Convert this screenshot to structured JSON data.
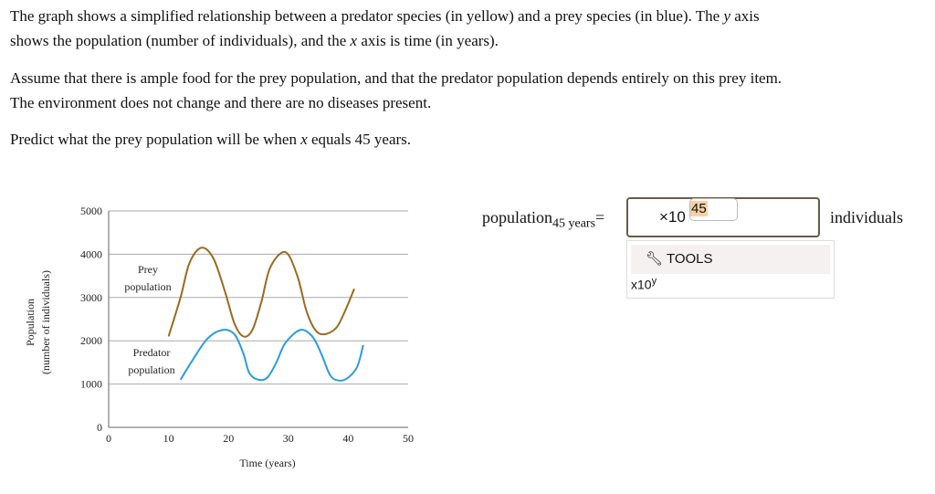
{
  "question": {
    "p1a": "The graph shows a simplified relationship between a predator species (in yellow) and a prey species (in blue). The ",
    "p1y": "y",
    "p1b": " axis",
    "p1c": "shows the population (number of individuals), and the ",
    "p1x": "x",
    "p1d": " axis is time (in years).",
    "p2a": "Assume that there is ample food for the prey population, and that the predator population depends entirely on this prey item.",
    "p2b": "The environment does not change and there are no diseases present.",
    "p3a": "Predict what the prey population will be when ",
    "p3x": "x",
    "p3b": " equals 45 years."
  },
  "answer": {
    "label": "population",
    "label_sub": "45 years",
    "equals": "=",
    "times_ten": "×10",
    "exponent": "45",
    "unit": "individuals",
    "tools_label": "TOOLS",
    "tools_icon": "wrench-icon",
    "sci_button": "x10",
    "sci_button_sup": "y"
  },
  "chart_data": {
    "type": "line",
    "xlabel": "Time (years)",
    "ylabel": "Population",
    "ylabel2": "(number of individuals)",
    "xlim": [
      0,
      50
    ],
    "ylim": [
      0,
      5000
    ],
    "xticks": [
      0,
      10,
      20,
      30,
      40,
      50
    ],
    "yticks": [
      0,
      1000,
      2000,
      3000,
      4000,
      5000
    ],
    "grid": "horizontal",
    "series": [
      {
        "name": "Prey population",
        "label_lines": [
          "Prey",
          "population"
        ],
        "color": "#9a6a1e",
        "points": [
          [
            10,
            2100
          ],
          [
            12,
            3000
          ],
          [
            13.5,
            3800
          ],
          [
            15.5,
            4150
          ],
          [
            17.5,
            3900
          ],
          [
            19.5,
            3100
          ],
          [
            21,
            2400
          ],
          [
            22.5,
            2100
          ],
          [
            24,
            2250
          ],
          [
            25.5,
            2900
          ],
          [
            27,
            3700
          ],
          [
            29.5,
            4050
          ],
          [
            31.5,
            3500
          ],
          [
            33,
            2700
          ],
          [
            34.5,
            2250
          ],
          [
            36,
            2150
          ],
          [
            38,
            2300
          ],
          [
            39.5,
            2700
          ],
          [
            41,
            3200
          ]
        ]
      },
      {
        "name": "Predator population",
        "label_lines": [
          "Predator",
          "population"
        ],
        "color": "#2a9be0",
        "points": [
          [
            12,
            1100
          ],
          [
            14,
            1550
          ],
          [
            16.5,
            2050
          ],
          [
            19,
            2250
          ],
          [
            21,
            2150
          ],
          [
            22.5,
            1700
          ],
          [
            23.5,
            1250
          ],
          [
            25,
            1100
          ],
          [
            26.5,
            1150
          ],
          [
            28,
            1500
          ],
          [
            29.5,
            1950
          ],
          [
            32,
            2250
          ],
          [
            34,
            2100
          ],
          [
            35.5,
            1700
          ],
          [
            37,
            1200
          ],
          [
            38.5,
            1080
          ],
          [
            40,
            1150
          ],
          [
            41.5,
            1400
          ],
          [
            42.5,
            1900
          ]
        ]
      }
    ]
  }
}
